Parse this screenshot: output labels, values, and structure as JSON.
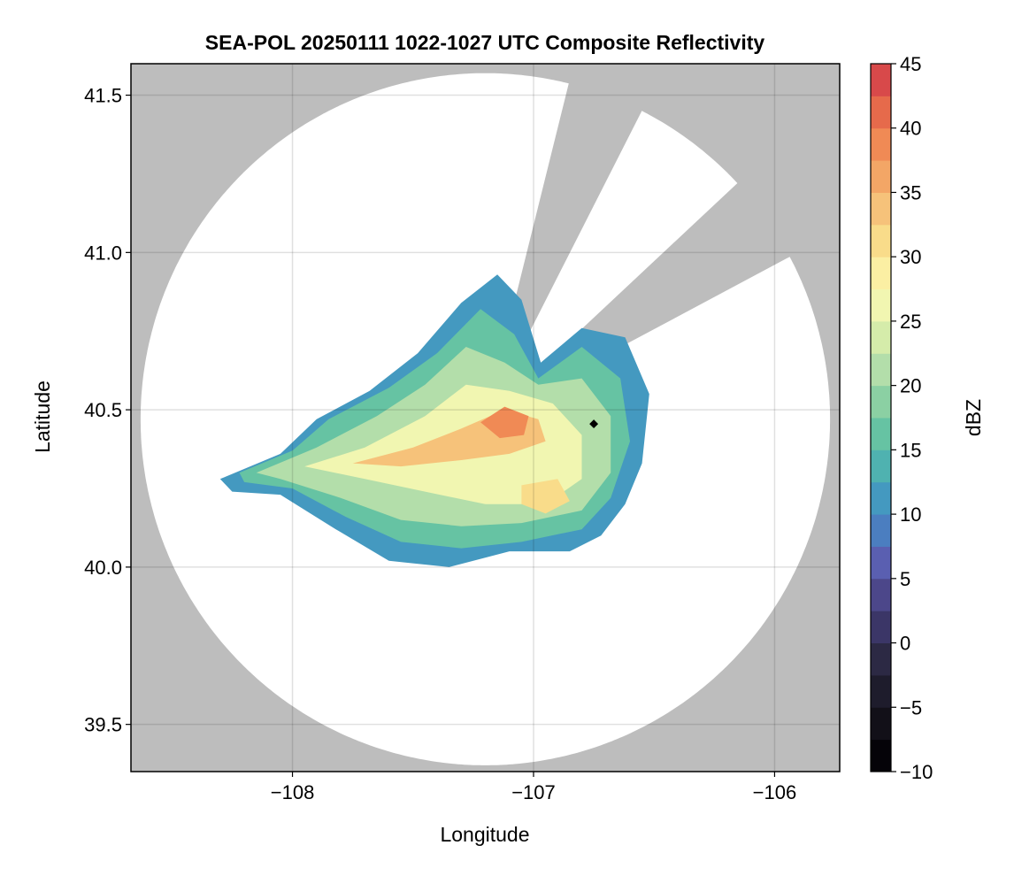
{
  "chart_data": {
    "type": "heatmap",
    "title": "SEA-POL 20250111 1022-1027 UTC Composite Reflectivity",
    "xlabel": "Longitude",
    "ylabel": "Latitude",
    "xlim": [
      -108.67,
      -105.73
    ],
    "ylim": [
      39.35,
      41.6
    ],
    "xticks": [
      -108,
      -107,
      -106
    ],
    "xtick_labels": [
      "−108",
      "−107",
      "−106"
    ],
    "yticks": [
      39.5,
      40.0,
      40.5,
      41.0,
      41.5
    ],
    "ytick_labels": [
      "39.5",
      "40.0",
      "40.5",
      "41.0",
      "41.5"
    ],
    "grid": true,
    "background_color": "#bdbdbd",
    "radar_coverage": {
      "center": {
        "lon": -107.2,
        "lat": 40.47
      },
      "max_range_lon": 1.43,
      "max_range_lat": 1.1,
      "blocked_sectors": [
        {
          "from_bearing_deg": 14,
          "to_bearing_deg": 27
        },
        {
          "from_bearing_deg": 47,
          "to_bearing_deg": 62
        }
      ]
    },
    "site_marker": {
      "lon": -106.75,
      "lat": 40.455,
      "color": "#000000"
    },
    "reflectivity_regions": [
      {
        "dbz": 12,
        "polygon": [
          [
            -108.3,
            40.28
          ],
          [
            -108.05,
            40.36
          ],
          [
            -107.9,
            40.47
          ],
          [
            -107.68,
            40.56
          ],
          [
            -107.48,
            40.68
          ],
          [
            -107.3,
            40.84
          ],
          [
            -107.15,
            40.93
          ],
          [
            -107.05,
            40.85
          ],
          [
            -106.97,
            40.65
          ],
          [
            -106.8,
            40.76
          ],
          [
            -106.62,
            40.73
          ],
          [
            -106.52,
            40.55
          ],
          [
            -106.55,
            40.33
          ],
          [
            -106.62,
            40.2
          ],
          [
            -106.72,
            40.1
          ],
          [
            -106.85,
            40.05
          ],
          [
            -107.1,
            40.05
          ],
          [
            -107.35,
            40.0
          ],
          [
            -107.6,
            40.02
          ],
          [
            -107.82,
            40.12
          ],
          [
            -108.05,
            40.23
          ],
          [
            -108.25,
            40.24
          ]
        ]
      },
      {
        "dbz": 17,
        "polygon": [
          [
            -108.22,
            40.3
          ],
          [
            -108.0,
            40.37
          ],
          [
            -107.85,
            40.47
          ],
          [
            -107.6,
            40.57
          ],
          [
            -107.4,
            40.68
          ],
          [
            -107.22,
            40.82
          ],
          [
            -107.08,
            40.74
          ],
          [
            -106.98,
            40.6
          ],
          [
            -106.8,
            40.7
          ],
          [
            -106.64,
            40.6
          ],
          [
            -106.6,
            40.4
          ],
          [
            -106.68,
            40.22
          ],
          [
            -106.8,
            40.12
          ],
          [
            -107.05,
            40.08
          ],
          [
            -107.3,
            40.06
          ],
          [
            -107.55,
            40.08
          ],
          [
            -107.78,
            40.16
          ],
          [
            -108.0,
            40.25
          ],
          [
            -108.2,
            40.27
          ]
        ]
      },
      {
        "dbz": 22,
        "polygon": [
          [
            -108.15,
            40.3
          ],
          [
            -107.9,
            40.38
          ],
          [
            -107.65,
            40.48
          ],
          [
            -107.45,
            40.58
          ],
          [
            -107.28,
            40.7
          ],
          [
            -107.12,
            40.65
          ],
          [
            -106.98,
            40.58
          ],
          [
            -106.8,
            40.6
          ],
          [
            -106.68,
            40.48
          ],
          [
            -106.68,
            40.3
          ],
          [
            -106.8,
            40.18
          ],
          [
            -107.05,
            40.14
          ],
          [
            -107.3,
            40.13
          ],
          [
            -107.55,
            40.15
          ],
          [
            -107.8,
            40.22
          ],
          [
            -108.05,
            40.28
          ]
        ]
      },
      {
        "dbz": 27,
        "polygon": [
          [
            -107.95,
            40.32
          ],
          [
            -107.7,
            40.38
          ],
          [
            -107.45,
            40.48
          ],
          [
            -107.28,
            40.58
          ],
          [
            -107.1,
            40.56
          ],
          [
            -106.92,
            40.52
          ],
          [
            -106.8,
            40.42
          ],
          [
            -106.8,
            40.28
          ],
          [
            -106.95,
            40.2
          ],
          [
            -107.2,
            40.2
          ],
          [
            -107.45,
            40.24
          ],
          [
            -107.7,
            40.28
          ]
        ]
      },
      {
        "dbz": 33,
        "polygon": [
          [
            -107.75,
            40.33
          ],
          [
            -107.5,
            40.38
          ],
          [
            -107.3,
            40.44
          ],
          [
            -107.12,
            40.5
          ],
          [
            -106.98,
            40.47
          ],
          [
            -106.95,
            40.4
          ],
          [
            -107.1,
            40.36
          ],
          [
            -107.3,
            40.34
          ],
          [
            -107.55,
            40.32
          ]
        ]
      },
      {
        "dbz": 38,
        "polygon": [
          [
            -107.22,
            40.46
          ],
          [
            -107.12,
            40.51
          ],
          [
            -107.02,
            40.48
          ],
          [
            -107.04,
            40.42
          ],
          [
            -107.14,
            40.41
          ]
        ]
      },
      {
        "dbz": 30,
        "polygon": [
          [
            -107.05,
            40.26
          ],
          [
            -106.9,
            40.28
          ],
          [
            -106.85,
            40.21
          ],
          [
            -106.95,
            40.17
          ],
          [
            -107.05,
            40.2
          ]
        ]
      }
    ],
    "colorbar": {
      "label": "dBZ",
      "min": -10,
      "max": 45,
      "step": 2.5,
      "ticks": [
        -10,
        -5,
        0,
        5,
        10,
        15,
        20,
        25,
        30,
        35,
        40,
        45
      ],
      "tick_labels": [
        "−10",
        "−5",
        "0",
        "5",
        "10",
        "15",
        "20",
        "25",
        "30",
        "35",
        "40",
        "45"
      ],
      "colors": [
        "#050308",
        "#121018",
        "#1e1c2c",
        "#2c2944",
        "#3b3667",
        "#4c478a",
        "#5a5fb1",
        "#4b7ec0",
        "#4499c0",
        "#4fb2b0",
        "#66c3a3",
        "#8bd0a3",
        "#b3deaa",
        "#d5ecaa",
        "#f1f6b1",
        "#fbefa3",
        "#f9dc8a",
        "#f6c27a",
        "#f3a666",
        "#f08a55",
        "#e66a4b",
        "#d8494a",
        "#c32e4c",
        "#a71a51",
        "#c6256d",
        "#dd4a94",
        "#eb8abb",
        "#e7a2d0",
        "#c690c7",
        "#a372b3",
        "#84519b",
        "#673382",
        "#4a1562"
      ]
    }
  }
}
